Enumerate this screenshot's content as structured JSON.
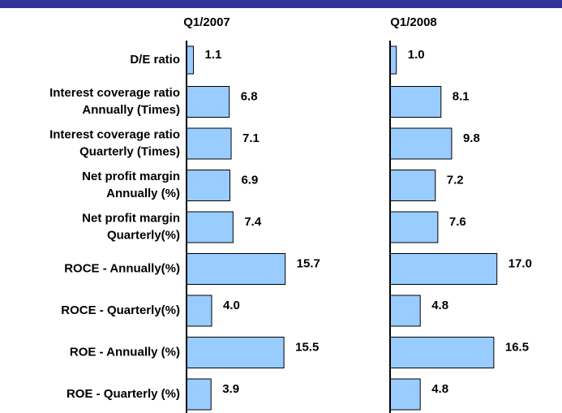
{
  "chart_data": {
    "type": "bar",
    "orientation": "horizontal",
    "color": "#99ccff",
    "categories": [
      [
        "D/E ratio"
      ],
      [
        "Interest coverage ratio",
        "Annually (Times)"
      ],
      [
        "Interest coverage ratio",
        "Quarterly (Times)"
      ],
      [
        "Net profit margin",
        "Annually (%)"
      ],
      [
        "Net profit margin",
        "Quarterly(%)"
      ],
      [
        "ROCE - Annually(%)"
      ],
      [
        "ROCE - Quarterly(%)"
      ],
      [
        "ROE - Annually (%)"
      ],
      [
        "ROE - Quarterly (%)"
      ]
    ],
    "series": [
      {
        "name": "Q1/2007",
        "color": "#99ccff",
        "values": [
          1.1,
          6.8,
          7.1,
          6.9,
          7.4,
          15.7,
          4.0,
          15.5,
          3.9
        ],
        "value_labels": [
          "1.1",
          "6.8",
          "7.1",
          "6.9",
          "7.4",
          "15.7",
          "4.0",
          "15.5",
          "3.9"
        ]
      },
      {
        "name": "Q1/2008",
        "color": "#99ccff",
        "values": [
          1.0,
          8.1,
          9.8,
          7.2,
          7.6,
          17.0,
          4.8,
          16.5,
          4.8
        ],
        "value_labels": [
          "1.0",
          "8.1",
          "9.8",
          "7.2",
          "7.6",
          "17.0",
          "4.8",
          "16.5",
          "4.8"
        ]
      }
    ]
  }
}
